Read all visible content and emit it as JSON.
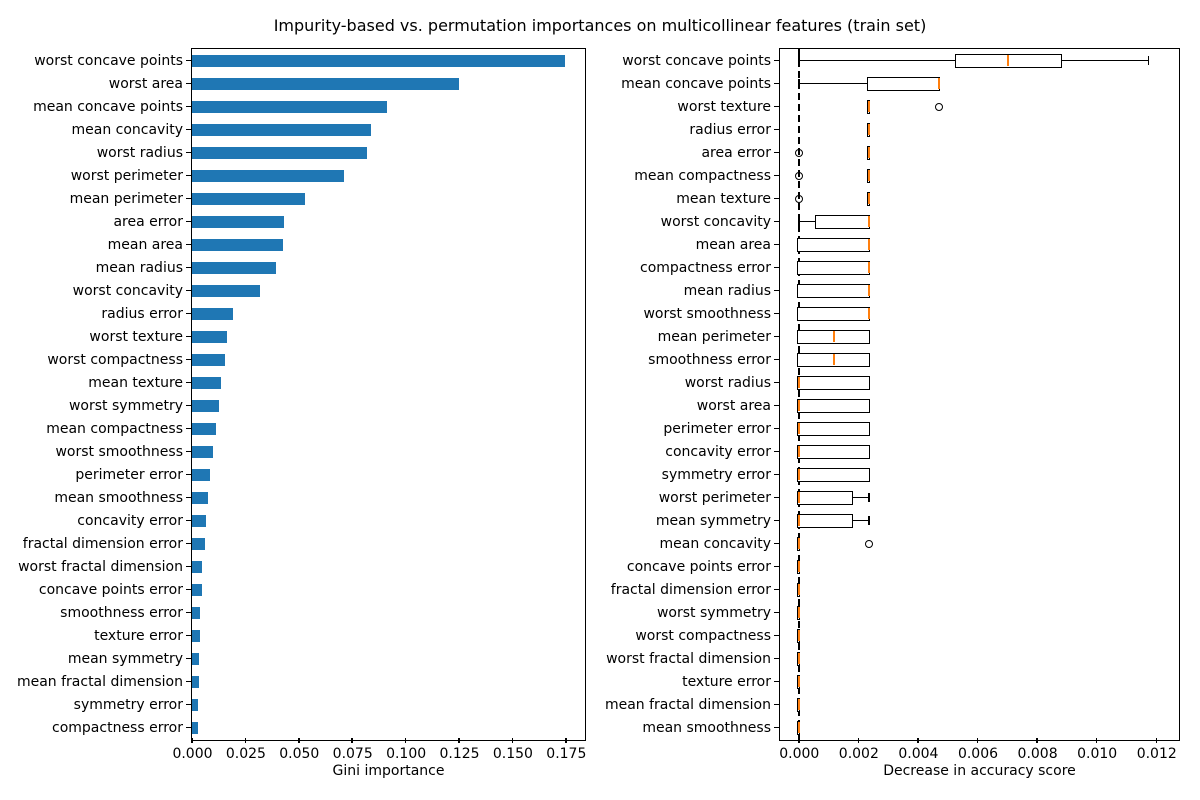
{
  "figure": {
    "title": "Impurity-based vs. permutation importances on multicollinear features (train set)"
  },
  "colors": {
    "bar_fill": "#1f77b4",
    "box_edge": "#000000",
    "median_line": "#ff7f0e",
    "axvline": "#000000",
    "text": "#000000"
  },
  "chart_data": [
    {
      "type": "bar",
      "orientation": "horizontal",
      "xlabel": "Gini importance",
      "xlim": [
        0,
        0.1835
      ],
      "grid": false,
      "xticks": [
        0.0,
        0.025,
        0.05,
        0.075,
        0.1,
        0.125,
        0.15,
        0.175
      ],
      "xtick_labels": [
        "0.000",
        "0.025",
        "0.050",
        "0.075",
        "0.100",
        "0.125",
        "0.150",
        "0.175"
      ],
      "categories": [
        "worst concave points",
        "worst area",
        "mean concave points",
        "mean concavity",
        "worst radius",
        "worst perimeter",
        "mean perimeter",
        "area error",
        "mean area",
        "mean radius",
        "worst concavity",
        "radius error",
        "worst texture",
        "worst compactness",
        "mean texture",
        "worst symmetry",
        "mean compactness",
        "worst smoothness",
        "perimeter error",
        "mean smoothness",
        "concavity error",
        "fractal dimension error",
        "worst fractal dimension",
        "concave points error",
        "smoothness error",
        "texture error",
        "mean symmetry",
        "mean fractal dimension",
        "symmetry error",
        "compactness error"
      ],
      "values": [
        0.1746,
        0.1248,
        0.0911,
        0.0836,
        0.0818,
        0.0711,
        0.053,
        0.0432,
        0.0427,
        0.0395,
        0.0316,
        0.019,
        0.0163,
        0.0153,
        0.0138,
        0.0125,
        0.0112,
        0.0096,
        0.0084,
        0.0073,
        0.0065,
        0.006,
        0.0047,
        0.0046,
        0.0037,
        0.0036,
        0.0032,
        0.0031,
        0.0029,
        0.0029
      ]
    },
    {
      "type": "boxplot",
      "orientation": "horizontal",
      "xlabel": "Decrease in accuracy score",
      "xlim": [
        -0.00063,
        0.01273
      ],
      "grid": false,
      "axvline": {
        "x": 0,
        "linestyle": "dashed",
        "color": "#000000"
      },
      "xticks": [
        0.0,
        0.002,
        0.004,
        0.006,
        0.008,
        0.01,
        0.012
      ],
      "xtick_labels": [
        "0.000",
        "0.002",
        "0.004",
        "0.006",
        "0.008",
        "0.010",
        "0.012"
      ],
      "categories": [
        "worst concave points",
        "mean concave points",
        "worst texture",
        "radius error",
        "area error",
        "mean compactness",
        "mean texture",
        "worst concavity",
        "mean area",
        "compactness error",
        "mean radius",
        "worst smoothness",
        "mean perimeter",
        "smoothness error",
        "worst radius",
        "worst area",
        "perimeter error",
        "concavity error",
        "symmetry error",
        "worst perimeter",
        "mean symmetry",
        "mean concavity",
        "concave points error",
        "fractal dimension error",
        "worst symmetry",
        "worst compactness",
        "worst fractal dimension",
        "texture error",
        "mean fractal dimension",
        "mean smoothness"
      ],
      "boxes": [
        {
          "whislo": 0.0,
          "q1": 0.00528,
          "med": 0.00704,
          "q3": 0.0088,
          "whishi": 0.01174,
          "fliers": []
        },
        {
          "whislo": 0.0,
          "q1": 0.00235,
          "med": 0.0047,
          "q3": 0.0047,
          "whishi": 0.0047,
          "fliers": []
        },
        {
          "whislo": 0.00235,
          "q1": 0.00235,
          "med": 0.00235,
          "q3": 0.00235,
          "whishi": 0.00235,
          "fliers": [
            0.0047
          ]
        },
        {
          "whislo": 0.00235,
          "q1": 0.00235,
          "med": 0.00235,
          "q3": 0.00235,
          "whishi": 0.00235,
          "fliers": []
        },
        {
          "whislo": 0.00235,
          "q1": 0.00235,
          "med": 0.00235,
          "q3": 0.00235,
          "whishi": 0.00235,
          "fliers": [
            0.0
          ]
        },
        {
          "whislo": 0.00235,
          "q1": 0.00235,
          "med": 0.00235,
          "q3": 0.00235,
          "whishi": 0.00235,
          "fliers": [
            0.0
          ]
        },
        {
          "whislo": 0.00235,
          "q1": 0.00235,
          "med": 0.00235,
          "q3": 0.00235,
          "whishi": 0.00235,
          "fliers": [
            0.0
          ]
        },
        {
          "whislo": 0.0,
          "q1": 0.00059,
          "med": 0.00235,
          "q3": 0.00235,
          "whishi": 0.00235,
          "fliers": []
        },
        {
          "whislo": 0.0,
          "q1": 0.0,
          "med": 0.00235,
          "q3": 0.00235,
          "whishi": 0.00235,
          "fliers": []
        },
        {
          "whislo": 0.0,
          "q1": 0.0,
          "med": 0.00235,
          "q3": 0.00235,
          "whishi": 0.00235,
          "fliers": []
        },
        {
          "whislo": 0.0,
          "q1": 0.0,
          "med": 0.00235,
          "q3": 0.00235,
          "whishi": 0.00235,
          "fliers": []
        },
        {
          "whislo": 0.0,
          "q1": 0.0,
          "med": 0.00235,
          "q3": 0.00235,
          "whishi": 0.00235,
          "fliers": []
        },
        {
          "whislo": 0.0,
          "q1": 0.0,
          "med": 0.00117,
          "q3": 0.00235,
          "whishi": 0.00235,
          "fliers": []
        },
        {
          "whislo": 0.0,
          "q1": 0.0,
          "med": 0.00117,
          "q3": 0.00235,
          "whishi": 0.00235,
          "fliers": []
        },
        {
          "whislo": 0.0,
          "q1": 0.0,
          "med": 0.0,
          "q3": 0.00235,
          "whishi": 0.00235,
          "fliers": []
        },
        {
          "whislo": 0.0,
          "q1": 0.0,
          "med": 0.0,
          "q3": 0.00235,
          "whishi": 0.00235,
          "fliers": []
        },
        {
          "whislo": 0.0,
          "q1": 0.0,
          "med": 0.0,
          "q3": 0.00235,
          "whishi": 0.00235,
          "fliers": []
        },
        {
          "whislo": 0.0,
          "q1": 0.0,
          "med": 0.0,
          "q3": 0.00235,
          "whishi": 0.00235,
          "fliers": []
        },
        {
          "whislo": 0.0,
          "q1": 0.0,
          "med": 0.0,
          "q3": 0.00235,
          "whishi": 0.00235,
          "fliers": []
        },
        {
          "whislo": 0.0,
          "q1": 0.0,
          "med": 0.0,
          "q3": 0.00176,
          "whishi": 0.00235,
          "fliers": []
        },
        {
          "whislo": 0.0,
          "q1": 0.0,
          "med": 0.0,
          "q3": 0.00176,
          "whishi": 0.00235,
          "fliers": []
        },
        {
          "whislo": 0.0,
          "q1": 0.0,
          "med": 0.0,
          "q3": 0.0,
          "whishi": 0.0,
          "fliers": [
            0.00235
          ]
        },
        {
          "whislo": 0.0,
          "q1": 0.0,
          "med": 0.0,
          "q3": 0.0,
          "whishi": 0.0,
          "fliers": []
        },
        {
          "whislo": 0.0,
          "q1": 0.0,
          "med": 0.0,
          "q3": 0.0,
          "whishi": 0.0,
          "fliers": []
        },
        {
          "whislo": 0.0,
          "q1": 0.0,
          "med": 0.0,
          "q3": 0.0,
          "whishi": 0.0,
          "fliers": []
        },
        {
          "whislo": 0.0,
          "q1": 0.0,
          "med": 0.0,
          "q3": 0.0,
          "whishi": 0.0,
          "fliers": []
        },
        {
          "whislo": 0.0,
          "q1": 0.0,
          "med": 0.0,
          "q3": 0.0,
          "whishi": 0.0,
          "fliers": []
        },
        {
          "whislo": 0.0,
          "q1": 0.0,
          "med": 0.0,
          "q3": 0.0,
          "whishi": 0.0,
          "fliers": []
        },
        {
          "whislo": 0.0,
          "q1": 0.0,
          "med": 0.0,
          "q3": 0.0,
          "whishi": 0.0,
          "fliers": []
        },
        {
          "whislo": 0.0,
          "q1": 0.0,
          "med": 0.0,
          "q3": 0.0,
          "whishi": 0.0,
          "fliers": []
        }
      ]
    }
  ]
}
